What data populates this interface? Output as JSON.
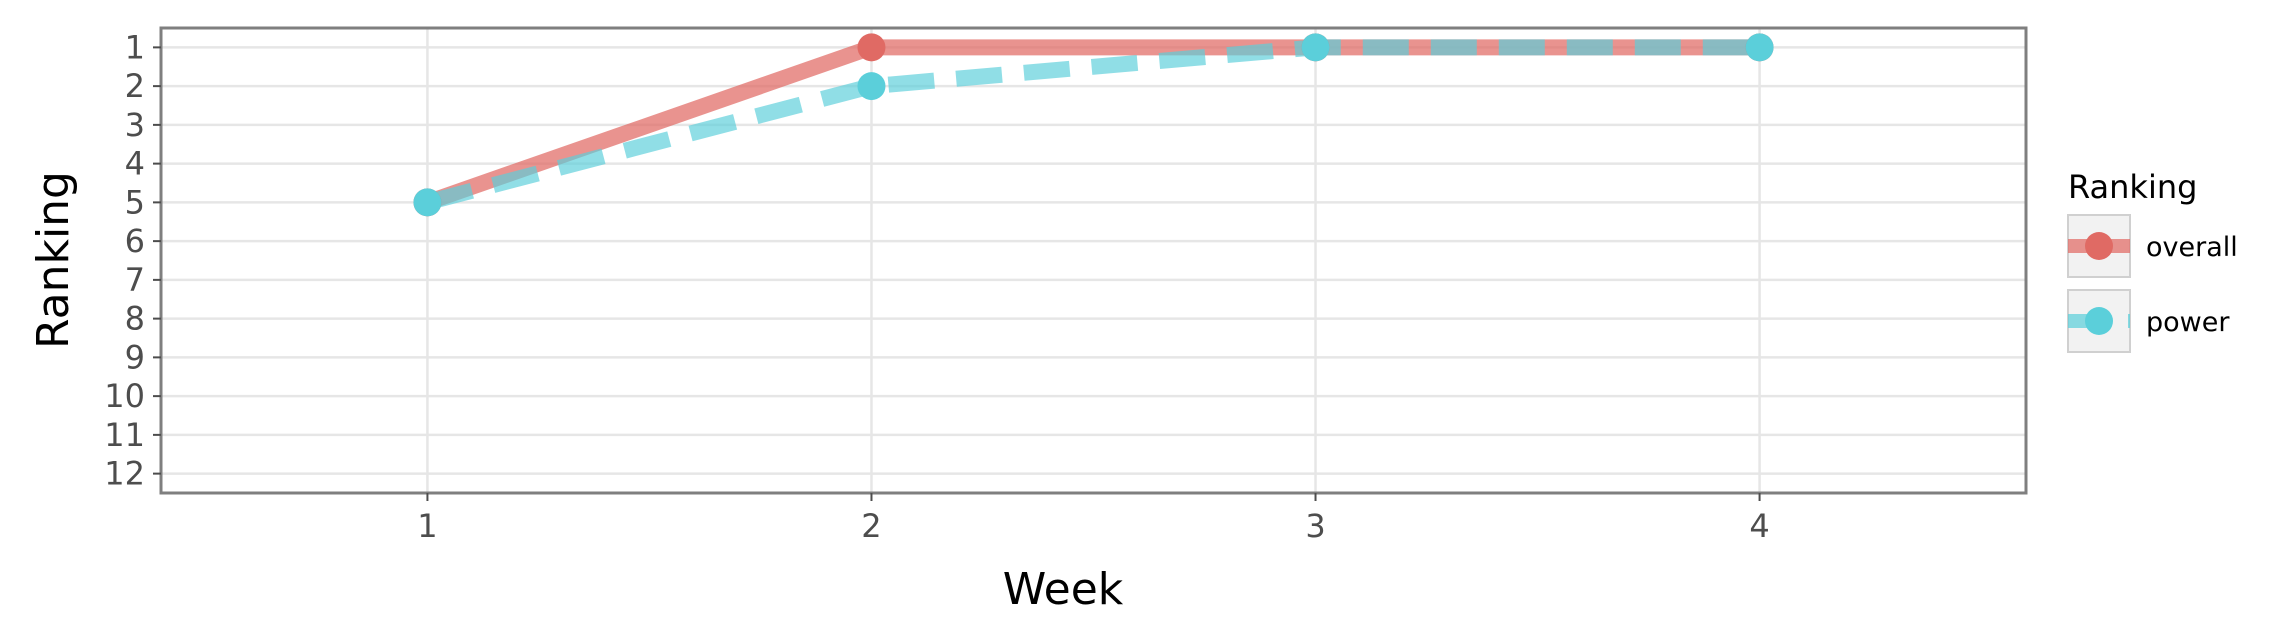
{
  "chart_data": {
    "type": "line",
    "xlabel": "Week",
    "ylabel": "Ranking",
    "x": [
      1,
      2,
      3,
      4
    ],
    "xticks": [
      "1",
      "2",
      "3",
      "4"
    ],
    "xlim": [
      0.4,
      4.6
    ],
    "yticks": [
      "1",
      "2",
      "3",
      "4",
      "5",
      "6",
      "7",
      "8",
      "9",
      "10",
      "11",
      "12"
    ],
    "ylim": [
      12.5,
      0.5
    ],
    "y_reversed": true,
    "grid": true,
    "legend": {
      "title": "Ranking",
      "position": "right"
    },
    "series": [
      {
        "name": "overall",
        "values": [
          5,
          1,
          1,
          1
        ],
        "color": "#E06A64",
        "line_style": "solid"
      },
      {
        "name": "power",
        "values": [
          5,
          2,
          1,
          1
        ],
        "color": "#5BCFDA",
        "line_style": "dashed"
      }
    ]
  }
}
